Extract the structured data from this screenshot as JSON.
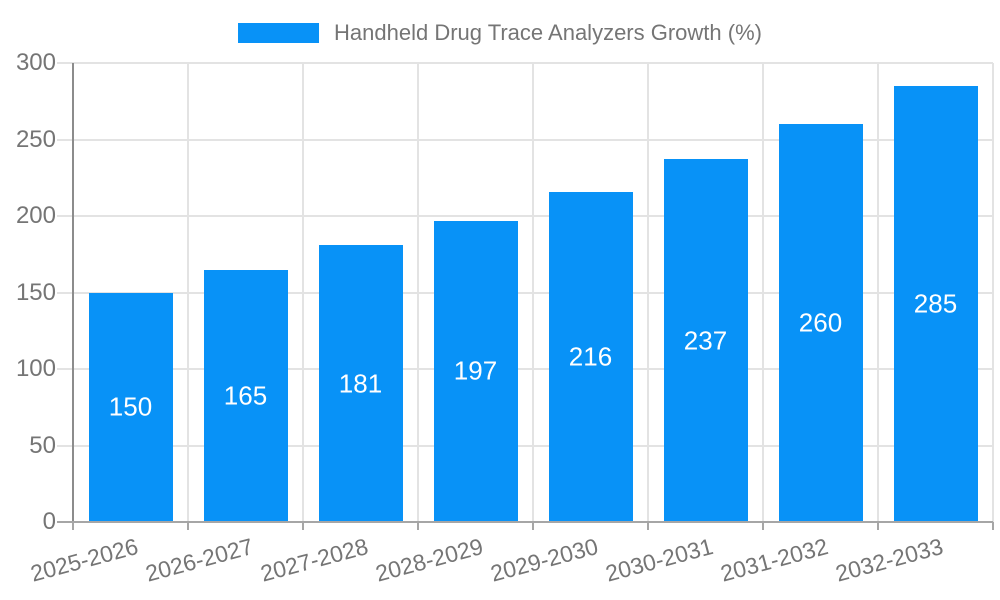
{
  "legend": {
    "label": "Handheld Drug Trace Analyzers Growth (%)"
  },
  "chart_data": {
    "type": "bar",
    "title": "Handheld Drug Trace Analyzers Growth (%)",
    "categories": [
      "2025-2026",
      "2026-2027",
      "2027-2028",
      "2028-2029",
      "2029-2030",
      "2030-2031",
      "2031-2032",
      "2032-2033"
    ],
    "values": [
      150,
      165,
      181,
      197,
      216,
      237,
      260,
      285
    ],
    "xlabel": "",
    "ylabel": "",
    "ylim": [
      0,
      300
    ],
    "yticks": [
      0,
      50,
      100,
      150,
      200,
      250,
      300
    ],
    "grid": true,
    "legend_position": "top-center",
    "colors": {
      "bar": "#0892f7",
      "value_label": "#ffffff",
      "gridline": "#e3e3e3",
      "y_axis_line": "#8c8c8c",
      "x_axis_line": "#a6a6a6",
      "tick": "#a6a6a6",
      "text": "#757575"
    }
  }
}
